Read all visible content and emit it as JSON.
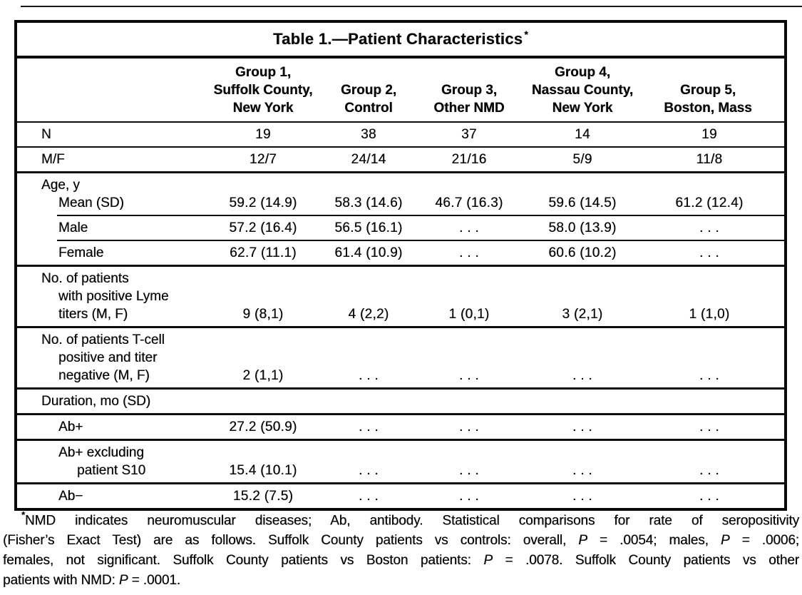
{
  "page": {
    "title_text": "Table 1.—Patient Characteristics",
    "title_asterisk": "*"
  },
  "table": {
    "column_headers": [
      "Group 1,\nSuffolk County,\nNew York",
      "Group 2,\nControl",
      "Group 3,\nOther NMD",
      "Group 4,\nNassau County,\nNew York",
      "Group 5,\nBoston, Mass"
    ],
    "rows": [
      {
        "label_lines": [
          "N"
        ],
        "values": [
          "19",
          "38",
          "37",
          "14",
          "19"
        ]
      },
      {
        "label_lines": [
          "M/F"
        ],
        "values": [
          "12/7",
          "24/14",
          "21/16",
          "5/9",
          "11/8"
        ]
      },
      {
        "label_lines": [
          "Age, y",
          "Mean (SD)"
        ],
        "values": [
          "59.2 (14.9)",
          "58.3 (14.6)",
          "46.7 (16.3)",
          "59.6 (14.5)",
          "61.2 (12.4)"
        ]
      },
      {
        "label_lines": [
          "Male"
        ],
        "values": [
          "57.2 (16.4)",
          "56.5 (16.1)",
          ". . .",
          "58.0 (13.9)",
          ". . ."
        ]
      },
      {
        "label_lines": [
          "Female"
        ],
        "values": [
          "62.7 (11.1)",
          "61.4 (10.9)",
          ". . .",
          "60.6 (10.2)",
          ". . ."
        ]
      },
      {
        "label_lines": [
          "No. of patients",
          "with positive Lyme",
          "titers (M, F)"
        ],
        "values": [
          "9 (8,1)",
          "4 (2,2)",
          "1 (0,1)",
          "3 (2,1)",
          "1 (1,0)"
        ]
      },
      {
        "label_lines": [
          "No. of patients T-cell",
          "positive and titer",
          "negative (M, F)"
        ],
        "values": [
          "2 (1,1)",
          ". . .",
          ". . .",
          ". . .",
          ". . ."
        ]
      },
      {
        "label_lines": [
          "Duration, mo (SD)"
        ],
        "values": [
          "",
          "",
          "",
          "",
          ""
        ]
      },
      {
        "label_lines": [
          "Ab+"
        ],
        "values": [
          "27.2 (50.9)",
          ". . .",
          ". . .",
          ". . .",
          ". . ."
        ]
      },
      {
        "label_lines": [
          "Ab+ excluding",
          "patient S10"
        ],
        "values": [
          "15.4 (10.1)",
          ". . .",
          ". . .",
          ". . .",
          ". . ."
        ]
      },
      {
        "label_lines": [
          "Ab−"
        ],
        "values": [
          "15.2 (7.5)",
          ". . .",
          ". . .",
          ". . .",
          ". . ."
        ]
      }
    ]
  },
  "footnote": {
    "asterisk": "*",
    "lines": [
      [
        {
          "t": "NMD indicates neuromuscular diseases; Ab, antibody. Statistical comparisons for rate of seropositivity"
        }
      ],
      [
        {
          "t": "(Fisher’s Exact Test) are as follows. Suffolk County patients vs controls: overall, "
        },
        {
          "t": "P",
          "i": true
        },
        {
          "t": " = .0054; males, "
        },
        {
          "t": "P",
          "i": true
        },
        {
          "t": " = .0006;"
        }
      ],
      [
        {
          "t": "females, not significant. Suffolk County patients vs Boston patients: "
        },
        {
          "t": "P",
          "i": true
        },
        {
          "t": " = .0078. Suffolk County patients vs other"
        }
      ],
      [
        {
          "t": "patients with NMD: "
        },
        {
          "t": "P",
          "i": true
        },
        {
          "t": " = .0001."
        }
      ]
    ]
  }
}
